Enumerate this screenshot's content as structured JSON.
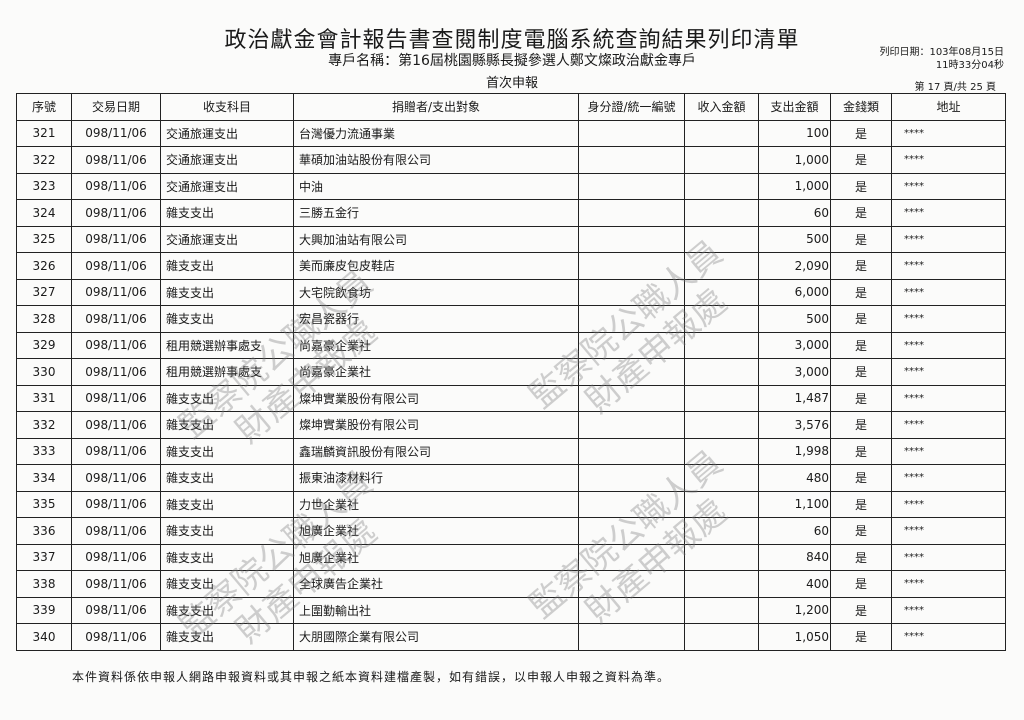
{
  "header": {
    "title": "政治獻金會計報告書查閱制度電腦系統查詢結果列印清單",
    "account_name": "專戶名稱：第16屆桃園縣縣長擬參選人鄭文燦政治獻金專戶",
    "report_type": "首次申報",
    "print_date": "列印日期：103年08月15日",
    "print_time": "11時33分04秒",
    "page_info": "第 17 頁/共 25 頁"
  },
  "columns": [
    "序號",
    "交易日期",
    "收支科目",
    "捐贈者/支出對象",
    "身分證/統一編號",
    "收入金額",
    "支出金額",
    "金錢類",
    "地址"
  ],
  "rows": [
    {
      "no": "321",
      "date": "098/11/06",
      "category": "交通旅運支出",
      "party": "台灣優力流通事業",
      "id": "",
      "income": "",
      "expense": "100",
      "cash": "是",
      "address": "****"
    },
    {
      "no": "322",
      "date": "098/11/06",
      "category": "交通旅運支出",
      "party": "華碩加油站股份有限公司",
      "id": "",
      "income": "",
      "expense": "1,000",
      "cash": "是",
      "address": "****"
    },
    {
      "no": "323",
      "date": "098/11/06",
      "category": "交通旅運支出",
      "party": "中油",
      "id": "",
      "income": "",
      "expense": "1,000",
      "cash": "是",
      "address": "****"
    },
    {
      "no": "324",
      "date": "098/11/06",
      "category": "雜支支出",
      "party": "三勝五金行",
      "id": "",
      "income": "",
      "expense": "60",
      "cash": "是",
      "address": "****"
    },
    {
      "no": "325",
      "date": "098/11/06",
      "category": "交通旅運支出",
      "party": "大興加油站有限公司",
      "id": "",
      "income": "",
      "expense": "500",
      "cash": "是",
      "address": "****"
    },
    {
      "no": "326",
      "date": "098/11/06",
      "category": "雜支支出",
      "party": "美而廉皮包皮鞋店",
      "id": "",
      "income": "",
      "expense": "2,090",
      "cash": "是",
      "address": "****"
    },
    {
      "no": "327",
      "date": "098/11/06",
      "category": "雜支支出",
      "party": "大宅院飲食坊",
      "id": "",
      "income": "",
      "expense": "6,000",
      "cash": "是",
      "address": "****"
    },
    {
      "no": "328",
      "date": "098/11/06",
      "category": "雜支支出",
      "party": "宏昌瓷器行",
      "id": "",
      "income": "",
      "expense": "500",
      "cash": "是",
      "address": "****"
    },
    {
      "no": "329",
      "date": "098/11/06",
      "category": "租用競選辦事處支",
      "party": "尚嘉豪企業社",
      "id": "",
      "income": "",
      "expense": "3,000",
      "cash": "是",
      "address": "****"
    },
    {
      "no": "330",
      "date": "098/11/06",
      "category": "租用競選辦事處支",
      "party": "尚嘉豪企業社",
      "id": "",
      "income": "",
      "expense": "3,000",
      "cash": "是",
      "address": "****"
    },
    {
      "no": "331",
      "date": "098/11/06",
      "category": "雜支支出",
      "party": "燦坤實業股份有限公司",
      "id": "",
      "income": "",
      "expense": "1,487",
      "cash": "是",
      "address": "****"
    },
    {
      "no": "332",
      "date": "098/11/06",
      "category": "雜支支出",
      "party": "燦坤實業股份有限公司",
      "id": "",
      "income": "",
      "expense": "3,576",
      "cash": "是",
      "address": "****"
    },
    {
      "no": "333",
      "date": "098/11/06",
      "category": "雜支支出",
      "party": "鑫瑞麟資訊股份有限公司",
      "id": "",
      "income": "",
      "expense": "1,998",
      "cash": "是",
      "address": "****"
    },
    {
      "no": "334",
      "date": "098/11/06",
      "category": "雜支支出",
      "party": "振東油漆材料行",
      "id": "",
      "income": "",
      "expense": "480",
      "cash": "是",
      "address": "****"
    },
    {
      "no": "335",
      "date": "098/11/06",
      "category": "雜支支出",
      "party": "力世企業社",
      "id": "",
      "income": "",
      "expense": "1,100",
      "cash": "是",
      "address": "****"
    },
    {
      "no": "336",
      "date": "098/11/06",
      "category": "雜支支出",
      "party": "旭廣企業社",
      "id": "",
      "income": "",
      "expense": "60",
      "cash": "是",
      "address": "****"
    },
    {
      "no": "337",
      "date": "098/11/06",
      "category": "雜支支出",
      "party": "旭廣企業社",
      "id": "",
      "income": "",
      "expense": "840",
      "cash": "是",
      "address": "****"
    },
    {
      "no": "338",
      "date": "098/11/06",
      "category": "雜支支出",
      "party": "全球廣告企業社",
      "id": "",
      "income": "",
      "expense": "400",
      "cash": "是",
      "address": "****"
    },
    {
      "no": "339",
      "date": "098/11/06",
      "category": "雜支支出",
      "party": "上圍勤輸出社",
      "id": "",
      "income": "",
      "expense": "1,200",
      "cash": "是",
      "address": "****"
    },
    {
      "no": "340",
      "date": "098/11/06",
      "category": "雜支支出",
      "party": "大朋國際企業有限公司",
      "id": "",
      "income": "",
      "expense": "1,050",
      "cash": "是",
      "address": "****"
    }
  ],
  "footer": "本件資料係依申報人網路申報資料或其申報之紙本資料建檔產製，如有錯誤，以申報人申報之資料為準。",
  "watermark": {
    "line1": "監察院公職人員",
    "line2": "財產申報處"
  }
}
